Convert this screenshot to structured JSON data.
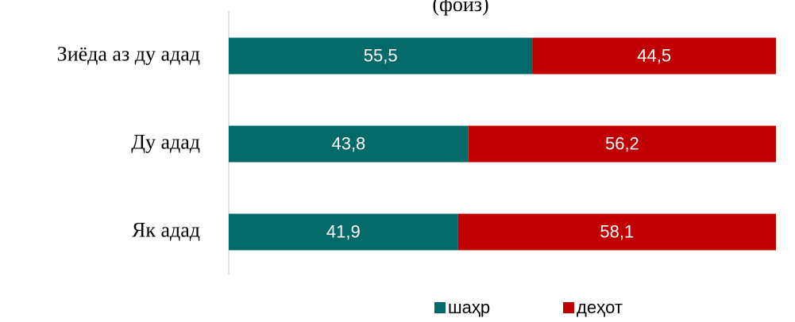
{
  "chart_data": {
    "type": "stacked_barh",
    "title": "(фоиз)",
    "categories": [
      "Зиёда аз ду адад",
      "Ду адад",
      "Як адад"
    ],
    "xlim": [
      0,
      100
    ],
    "legend": "bottom",
    "series": [
      {
        "name": "шаҳр",
        "color": "#036a69",
        "values": [
          55.5,
          43.8,
          41.9
        ],
        "value_labels": [
          "55,5",
          "43,8",
          "41,9"
        ]
      },
      {
        "name": "деҳот",
        "color": "#c00000",
        "values": [
          44.5,
          56.2,
          58.1
        ],
        "value_labels": [
          "44,5",
          "56,2",
          "58,1"
        ]
      }
    ]
  }
}
